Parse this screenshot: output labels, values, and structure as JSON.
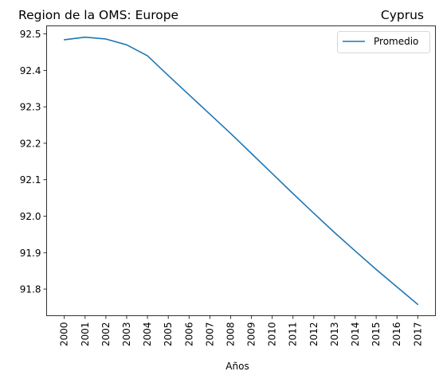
{
  "chart_data": {
    "type": "line",
    "title_left": "Region de la OMS: Europe",
    "title_right": "Cyprus",
    "xlabel": "Años",
    "ylabel": "",
    "x": [
      "2000",
      "2001",
      "2002",
      "2003",
      "2004",
      "2005",
      "2006",
      "2007",
      "2008",
      "2009",
      "2010",
      "2011",
      "2012",
      "2013",
      "2014",
      "2015",
      "2016",
      "2017"
    ],
    "series": [
      {
        "name": "Promedio",
        "color": "#1f77b4",
        "values": [
          92.484,
          92.491,
          92.486,
          92.47,
          92.44,
          92.386,
          92.333,
          92.28,
          92.227,
          92.172,
          92.117,
          92.062,
          92.008,
          91.955,
          91.904,
          91.854,
          91.806,
          91.758
        ]
      }
    ],
    "ylim": [
      91.727,
      92.522
    ],
    "yticks": [
      "91.8",
      "91.9",
      "92.0",
      "92.1",
      "92.2",
      "92.3",
      "92.4",
      "92.5"
    ],
    "legend_position": "top-right",
    "grid": false
  }
}
